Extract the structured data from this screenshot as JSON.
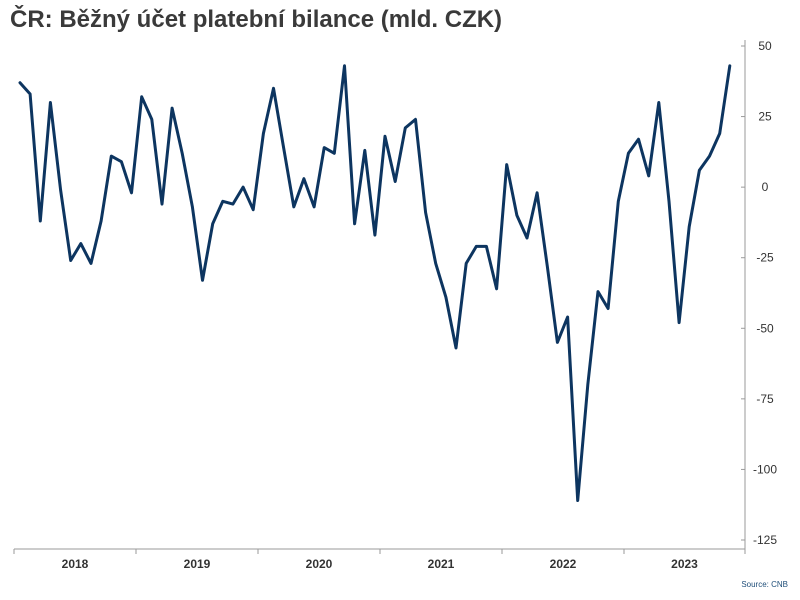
{
  "chart_data": {
    "type": "line",
    "title": "ČR: Běžný účet platební bilance (mld. CZK)",
    "source": "Source: CNB",
    "y_axis": {
      "position": "right",
      "range": [
        -125,
        50
      ],
      "ticks": [
        50,
        25,
        0,
        -25,
        -50,
        -75,
        -100,
        -125
      ],
      "tick_labels": [
        "50",
        "25",
        "0",
        "-25",
        "-50",
        "-75",
        "-100",
        "-125"
      ]
    },
    "x_axis": {
      "years": [
        "2018",
        "2019",
        "2020",
        "2021",
        "2022",
        "2023"
      ]
    },
    "grid": false,
    "line_color": "#0d3560",
    "series": [
      {
        "values": [
          37,
          33,
          -12,
          30,
          -1,
          -26,
          -20,
          -27,
          -12,
          11,
          9,
          -2,
          32,
          24,
          -6,
          28,
          12,
          -7,
          -33,
          -13,
          -5,
          -6,
          0,
          -8,
          19,
          35,
          14,
          -7,
          3,
          -7,
          14,
          12,
          43,
          -13,
          13,
          -17,
          18,
          2,
          21,
          24,
          -9,
          -27,
          -39,
          -57,
          -27,
          -21,
          -21,
          -36,
          8,
          -10,
          -18,
          -2,
          -28,
          -55,
          -46,
          -111,
          -70,
          -37,
          -43,
          -5,
          12,
          17,
          4,
          30,
          -5,
          -48,
          -14,
          6,
          11,
          19,
          43
        ]
      }
    ]
  }
}
